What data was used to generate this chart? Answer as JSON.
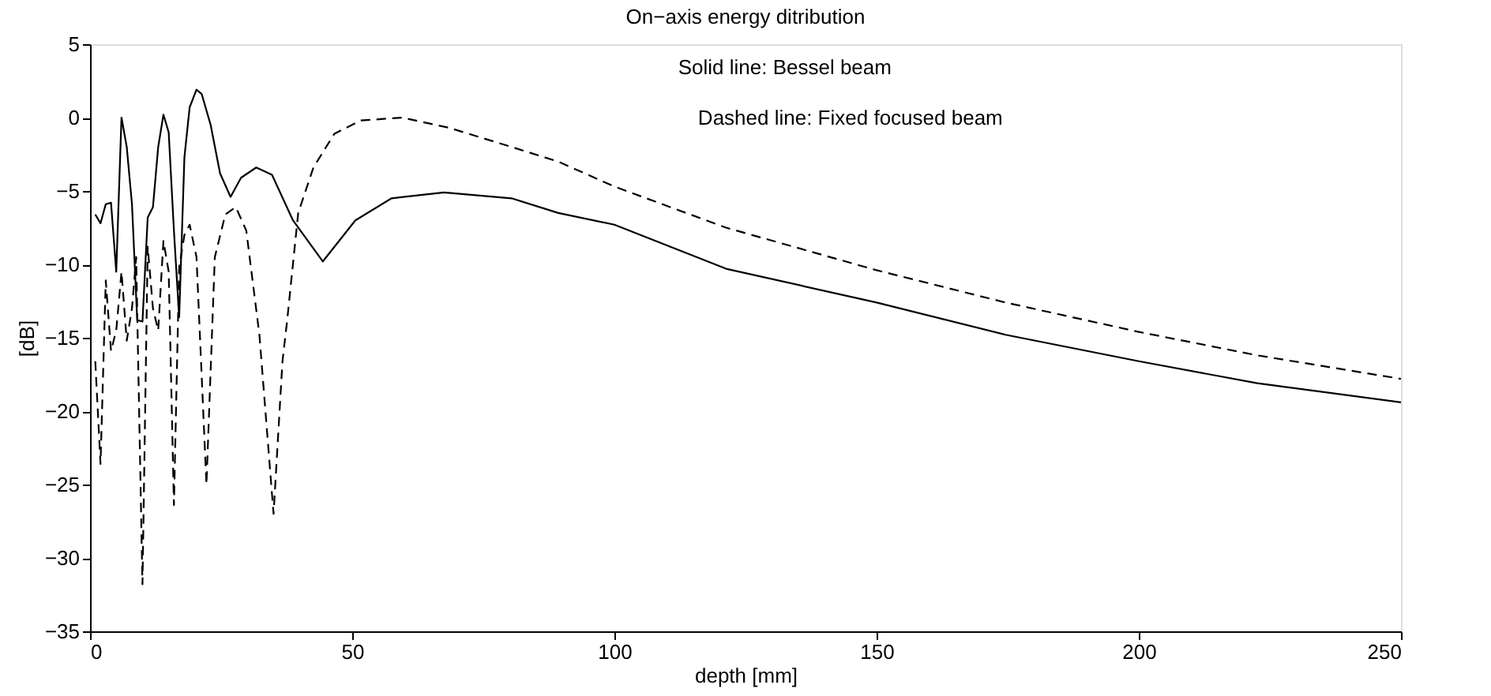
{
  "chart_data": {
    "type": "line",
    "title": "On−axis energy ditribution",
    "xlabel": "depth [mm]",
    "ylabel": "[dB]",
    "annotations": [
      "Solid line: Bessel beam",
      "Dashed line: Fixed focused beam"
    ],
    "xlim": [
      0,
      250
    ],
    "xticks": [
      0,
      50,
      100,
      150,
      200,
      250
    ],
    "ylim": [
      -35,
      5
    ],
    "yticks": [
      -35,
      -30,
      -25,
      -20,
      -15,
      -10,
      -5,
      0,
      5
    ],
    "grid": false,
    "legend": false,
    "marker": "none",
    "series": [
      {
        "color": "#000000",
        "line_style": "solid",
        "x": [
          1,
          2,
          3,
          4,
          5,
          6,
          7,
          8,
          9,
          10,
          11,
          12,
          13,
          14,
          15,
          16,
          17,
          18,
          19,
          20.3,
          21.3,
          23,
          24.8,
          26.8,
          28.8,
          31.7,
          34.7,
          38.7,
          44.4,
          50.6,
          57.5,
          67.5,
          80.4,
          89.3,
          100,
          121.3,
          150,
          174.6,
          200,
          222.6,
          250
        ],
        "values": [
          -6.6,
          -7.2,
          -5.9,
          -5.8,
          -10.5,
          0,
          -2,
          -5.9,
          -13.8,
          -13.9,
          -6.8,
          -6.1,
          -2,
          0.2,
          -1,
          -7.7,
          -13.6,
          -2.7,
          0.7,
          1.9,
          1.6,
          -0.5,
          -3.8,
          -5.4,
          -4.1,
          -3.4,
          -3.9,
          -7,
          -9.8,
          -7,
          -5.5,
          -5.1,
          -5.5,
          -6.5,
          -7.3,
          -10.3,
          -12.6,
          -14.8,
          -16.6,
          -18.1,
          -19.4
        ]
      },
      {
        "color": "#000000",
        "line_style": "dashed",
        "x": [
          1,
          2,
          3,
          4,
          5,
          6,
          7,
          8,
          8.8,
          10,
          11,
          12,
          13,
          14,
          15,
          16,
          17,
          18,
          19,
          20.3,
          22.2,
          23.8,
          25.8,
          27.8,
          29.8,
          32.3,
          35,
          36.7,
          37.6,
          39.7,
          42.6,
          46.6,
          51.6,
          59.5,
          68.5,
          80.4,
          89.3,
          100,
          121.3,
          150,
          174.6,
          200,
          222.6,
          250
        ],
        "values": [
          -16.6,
          -23.6,
          -11.1,
          -15.9,
          -14.5,
          -10.5,
          -15.2,
          -13,
          -9.5,
          -31.8,
          -8.8,
          -13,
          -14.5,
          -8.4,
          -10.5,
          -26.4,
          -10.2,
          -8,
          -7.3,
          -9.5,
          -25,
          -9.5,
          -6.6,
          -6.1,
          -7.7,
          -14.8,
          -27,
          -16.6,
          -13.8,
          -6.5,
          -3.4,
          -1.1,
          -0.2,
          0,
          -0.7,
          -2,
          -3,
          -4.7,
          -7.5,
          -10.4,
          -12.6,
          -14.6,
          -16.2,
          -17.8
        ]
      }
    ]
  }
}
